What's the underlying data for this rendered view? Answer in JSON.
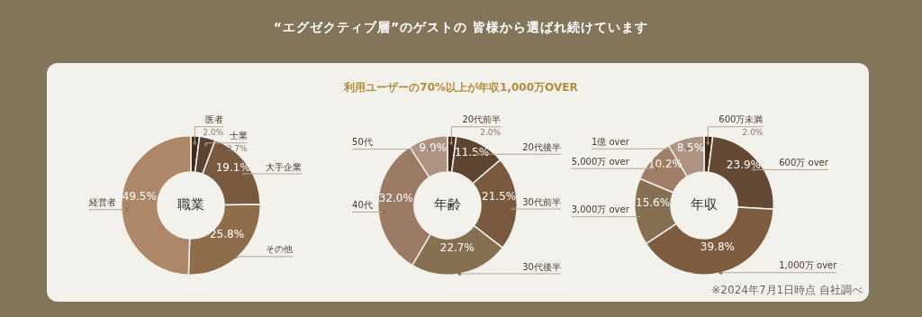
{
  "chart_data": [
    {
      "type": "donut",
      "title": "職業",
      "annotations": [
        "“エグゼクティブ層”のゲストの 皆様から選ばれ続けています",
        "利用ユーザーの70%以上が年収1,000万OVER"
      ],
      "categories": [
        "医者",
        "士業",
        "大手企業",
        "その他",
        "経営者"
      ],
      "values": [
        2.0,
        3.7,
        19.1,
        25.8,
        49.5
      ],
      "value_labels": [
        "2.0%",
        "3.7%",
        "19.1%",
        "25.8%",
        "49.5%"
      ],
      "colors": [
        "#3e2c1f",
        "#5a4330",
        "#7a5a3e",
        "#8e6d4b",
        "#ad8767"
      ]
    },
    {
      "type": "donut",
      "title": "年齢",
      "categories": [
        "20代前半",
        "20代後半",
        "30代前半",
        "30代後半",
        "40代",
        "50代"
      ],
      "values": [
        2.0,
        11.5,
        21.5,
        22.7,
        32.0,
        9.0
      ],
      "value_labels": [
        "2.0%",
        "11.5%",
        "21.5%",
        "22.7%",
        "32.0%",
        "9.0%"
      ],
      "colors": [
        "#3e2c1f",
        "#5e4532",
        "#7a5a3e",
        "#857152",
        "#9c7b66",
        "#ae9382"
      ]
    },
    {
      "type": "donut",
      "title": "年収",
      "annotations": [
        "※2024年7月1日時点 自社調べ"
      ],
      "categories": [
        "600万未満",
        "600万 over",
        "1,000万 over",
        "3,000万 over",
        "5,000万 over",
        "1億 over"
      ],
      "values": [
        2.0,
        23.9,
        39.8,
        15.6,
        10.2,
        8.5
      ],
      "value_labels": [
        "2.0%",
        "23.9%",
        "39.8%",
        "15.6%",
        "10.2%",
        "8.5%"
      ],
      "colors": [
        "#3e2c1f",
        "#644a35",
        "#7d5c40",
        "#857152",
        "#a07e68",
        "#ae9382"
      ]
    }
  ]
}
